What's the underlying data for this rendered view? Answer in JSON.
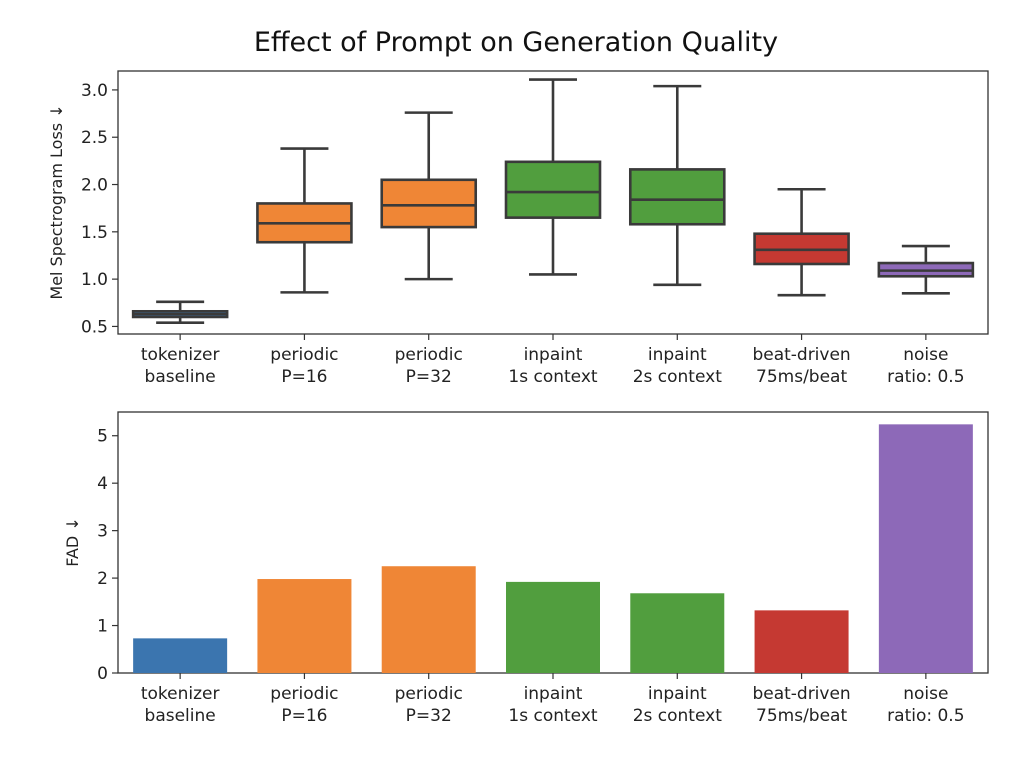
{
  "title": "Effect of Prompt on Generation Quality",
  "categories": [
    [
      "tokenizer",
      "baseline"
    ],
    [
      "periodic",
      "P=16"
    ],
    [
      "periodic",
      "P=32"
    ],
    [
      "inpaint",
      "1s context"
    ],
    [
      "inpaint",
      "2s context"
    ],
    [
      "beat-driven",
      "75ms/beat"
    ],
    [
      "noise",
      "ratio: 0.5"
    ]
  ],
  "colors": [
    "#3b75af",
    "#ef8636",
    "#ef8636",
    "#519e3e",
    "#519e3e",
    "#c53932",
    "#8d69b8"
  ],
  "chart_data": [
    {
      "type": "box",
      "ylabel": "Mel Spectrogram Loss ↓",
      "ylim": [
        0.42,
        3.2
      ],
      "yticks": [
        "0.5",
        "1.0",
        "1.5",
        "2.0",
        "2.5",
        "3.0"
      ],
      "grid": false,
      "boxes": [
        {
          "min": 0.54,
          "q1": 0.6,
          "median": 0.63,
          "q3": 0.66,
          "max": 0.76
        },
        {
          "min": 0.86,
          "q1": 1.39,
          "median": 1.59,
          "q3": 1.8,
          "max": 2.38
        },
        {
          "min": 1.0,
          "q1": 1.55,
          "median": 1.78,
          "q3": 2.05,
          "max": 2.76
        },
        {
          "min": 1.05,
          "q1": 1.65,
          "median": 1.92,
          "q3": 2.24,
          "max": 3.11
        },
        {
          "min": 0.94,
          "q1": 1.58,
          "median": 1.84,
          "q3": 2.16,
          "max": 3.04
        },
        {
          "min": 0.83,
          "q1": 1.16,
          "median": 1.31,
          "q3": 1.48,
          "max": 1.95
        },
        {
          "min": 0.85,
          "q1": 1.03,
          "median": 1.09,
          "q3": 1.17,
          "max": 1.35
        }
      ]
    },
    {
      "type": "bar",
      "ylabel": "FAD ↓",
      "ylim": [
        0,
        5.5
      ],
      "yticks": [
        "0",
        "1",
        "2",
        "3",
        "4",
        "5"
      ],
      "grid": false,
      "values": [
        0.73,
        1.98,
        2.25,
        1.92,
        1.68,
        1.32,
        5.24
      ]
    }
  ]
}
